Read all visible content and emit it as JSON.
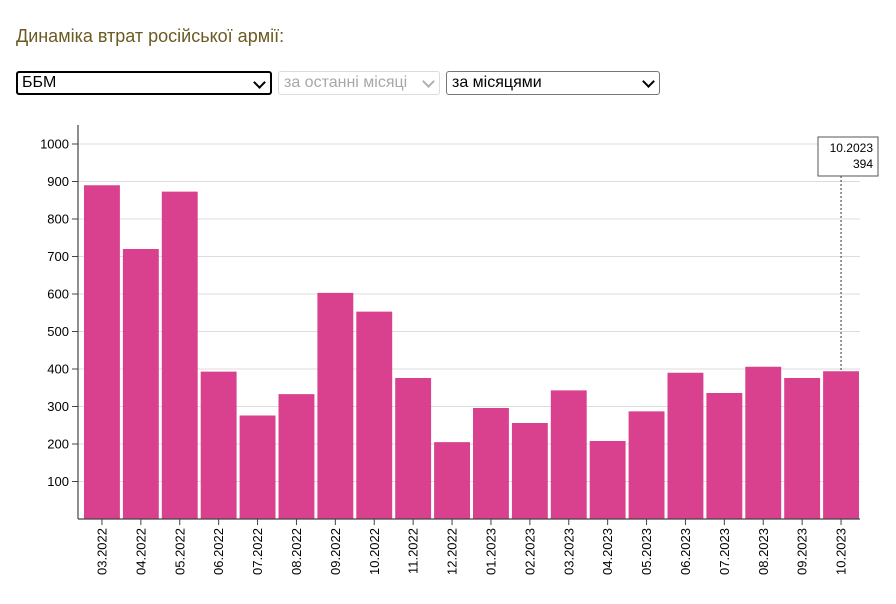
{
  "title": "Динаміка втрат російської армії:",
  "controls": {
    "category_select": "ББМ",
    "period_select": "за останні місяці",
    "grouping_select": "за місяцями"
  },
  "colors": {
    "bar": "#d9418f",
    "grid": "#dddddd",
    "axis": "#444444",
    "title": "#6b5a21"
  },
  "icons": {
    "select_chevron": "chevron-down-icon"
  },
  "chart_data": {
    "type": "bar",
    "categories": [
      "03.2022",
      "04.2022",
      "05.2022",
      "06.2022",
      "07.2022",
      "08.2022",
      "09.2022",
      "10.2022",
      "11.2022",
      "12.2022",
      "01.2023",
      "02.2023",
      "03.2023",
      "04.2023",
      "05.2023",
      "06.2023",
      "07.2023",
      "08.2023",
      "09.2023",
      "10.2023"
    ],
    "values": [
      890,
      720,
      873,
      393,
      276,
      333,
      603,
      553,
      376,
      205,
      296,
      256,
      343,
      208,
      287,
      390,
      336,
      406,
      376,
      394
    ],
    "yticks": [
      100,
      200,
      300,
      400,
      500,
      600,
      700,
      800,
      900,
      1000
    ],
    "ylim": [
      0,
      1000
    ],
    "grid": true,
    "title": "",
    "xlabel": "",
    "ylabel": "",
    "tooltip": {
      "label": "10.2023",
      "value": "394"
    }
  }
}
